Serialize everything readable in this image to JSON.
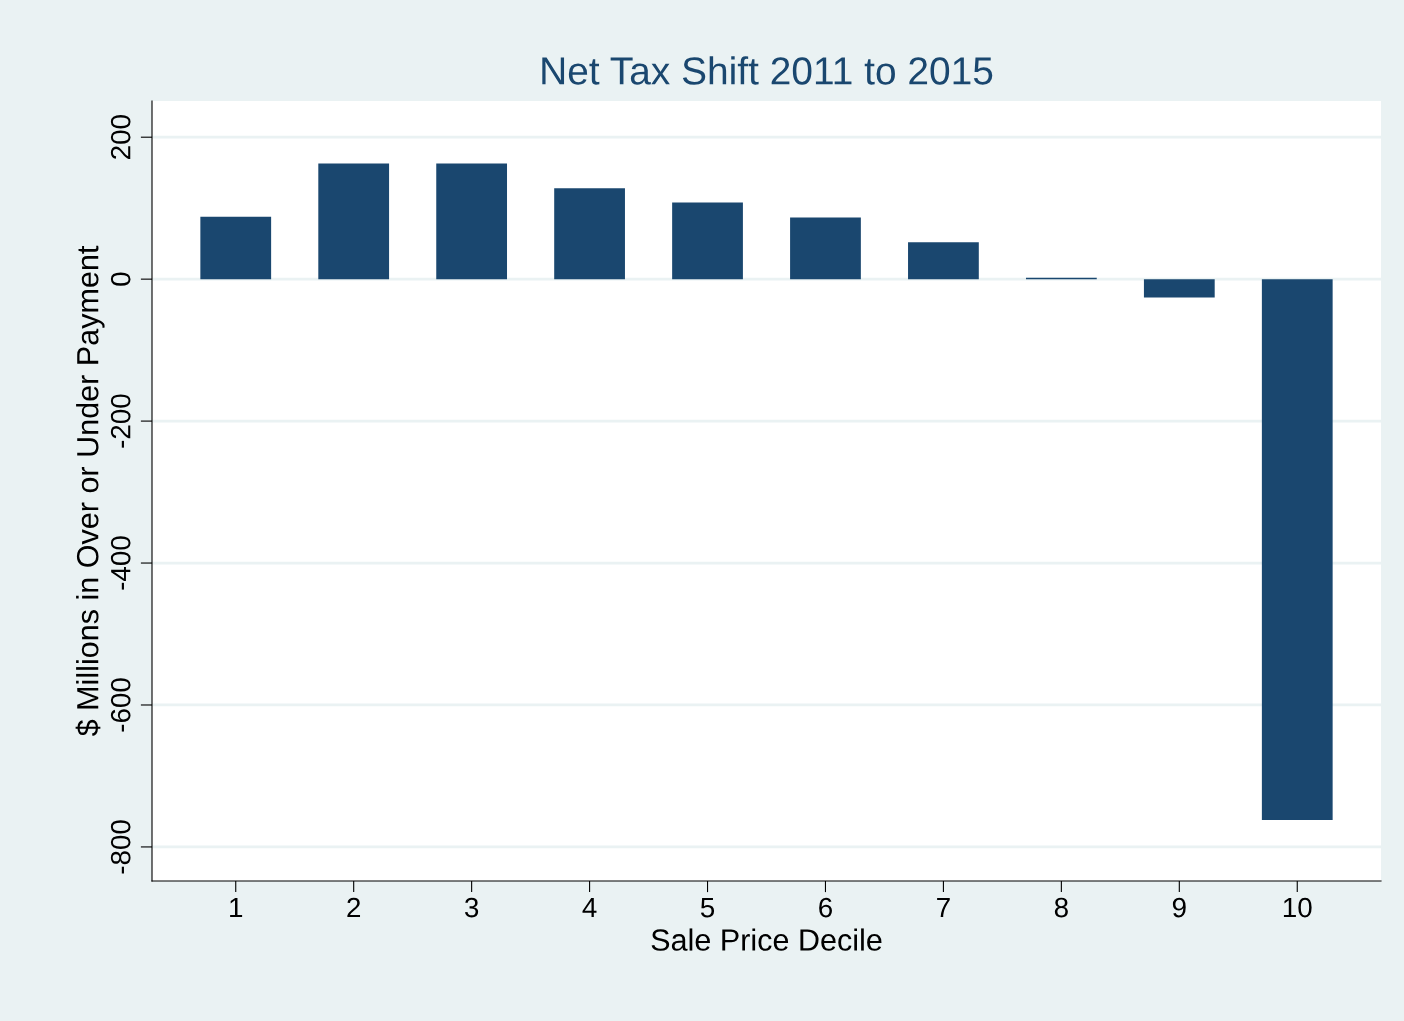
{
  "chart_data": {
    "type": "bar",
    "title": "Net Tax Shift 2011 to 2015",
    "xlabel": "Sale Price Decile",
    "ylabel": "$ Millions in Over or Under Payment",
    "categories": [
      "1",
      "2",
      "3",
      "4",
      "5",
      "6",
      "7",
      "8",
      "9",
      "10"
    ],
    "values": [
      88,
      163,
      163,
      128,
      108,
      87,
      52,
      2,
      -26,
      -762
    ],
    "color": "#1a476f",
    "ylim": [
      -848,
      251
    ],
    "yticks": [
      -800,
      -600,
      -400,
      -200,
      0,
      200
    ],
    "grid": "y",
    "legend": false
  }
}
